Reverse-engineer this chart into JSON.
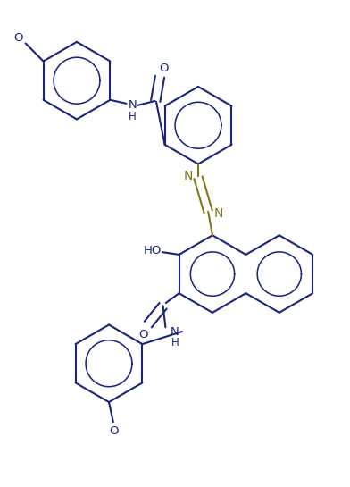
{
  "bg_color": "#ffffff",
  "line_color": "#1a237e",
  "azo_color": "#827717",
  "lw": 1.5,
  "fig_width": 3.92,
  "fig_height": 5.45,
  "dpi": 100,
  "xlim": [
    0,
    9.8
  ],
  "ylim": [
    0,
    13.6
  ]
}
